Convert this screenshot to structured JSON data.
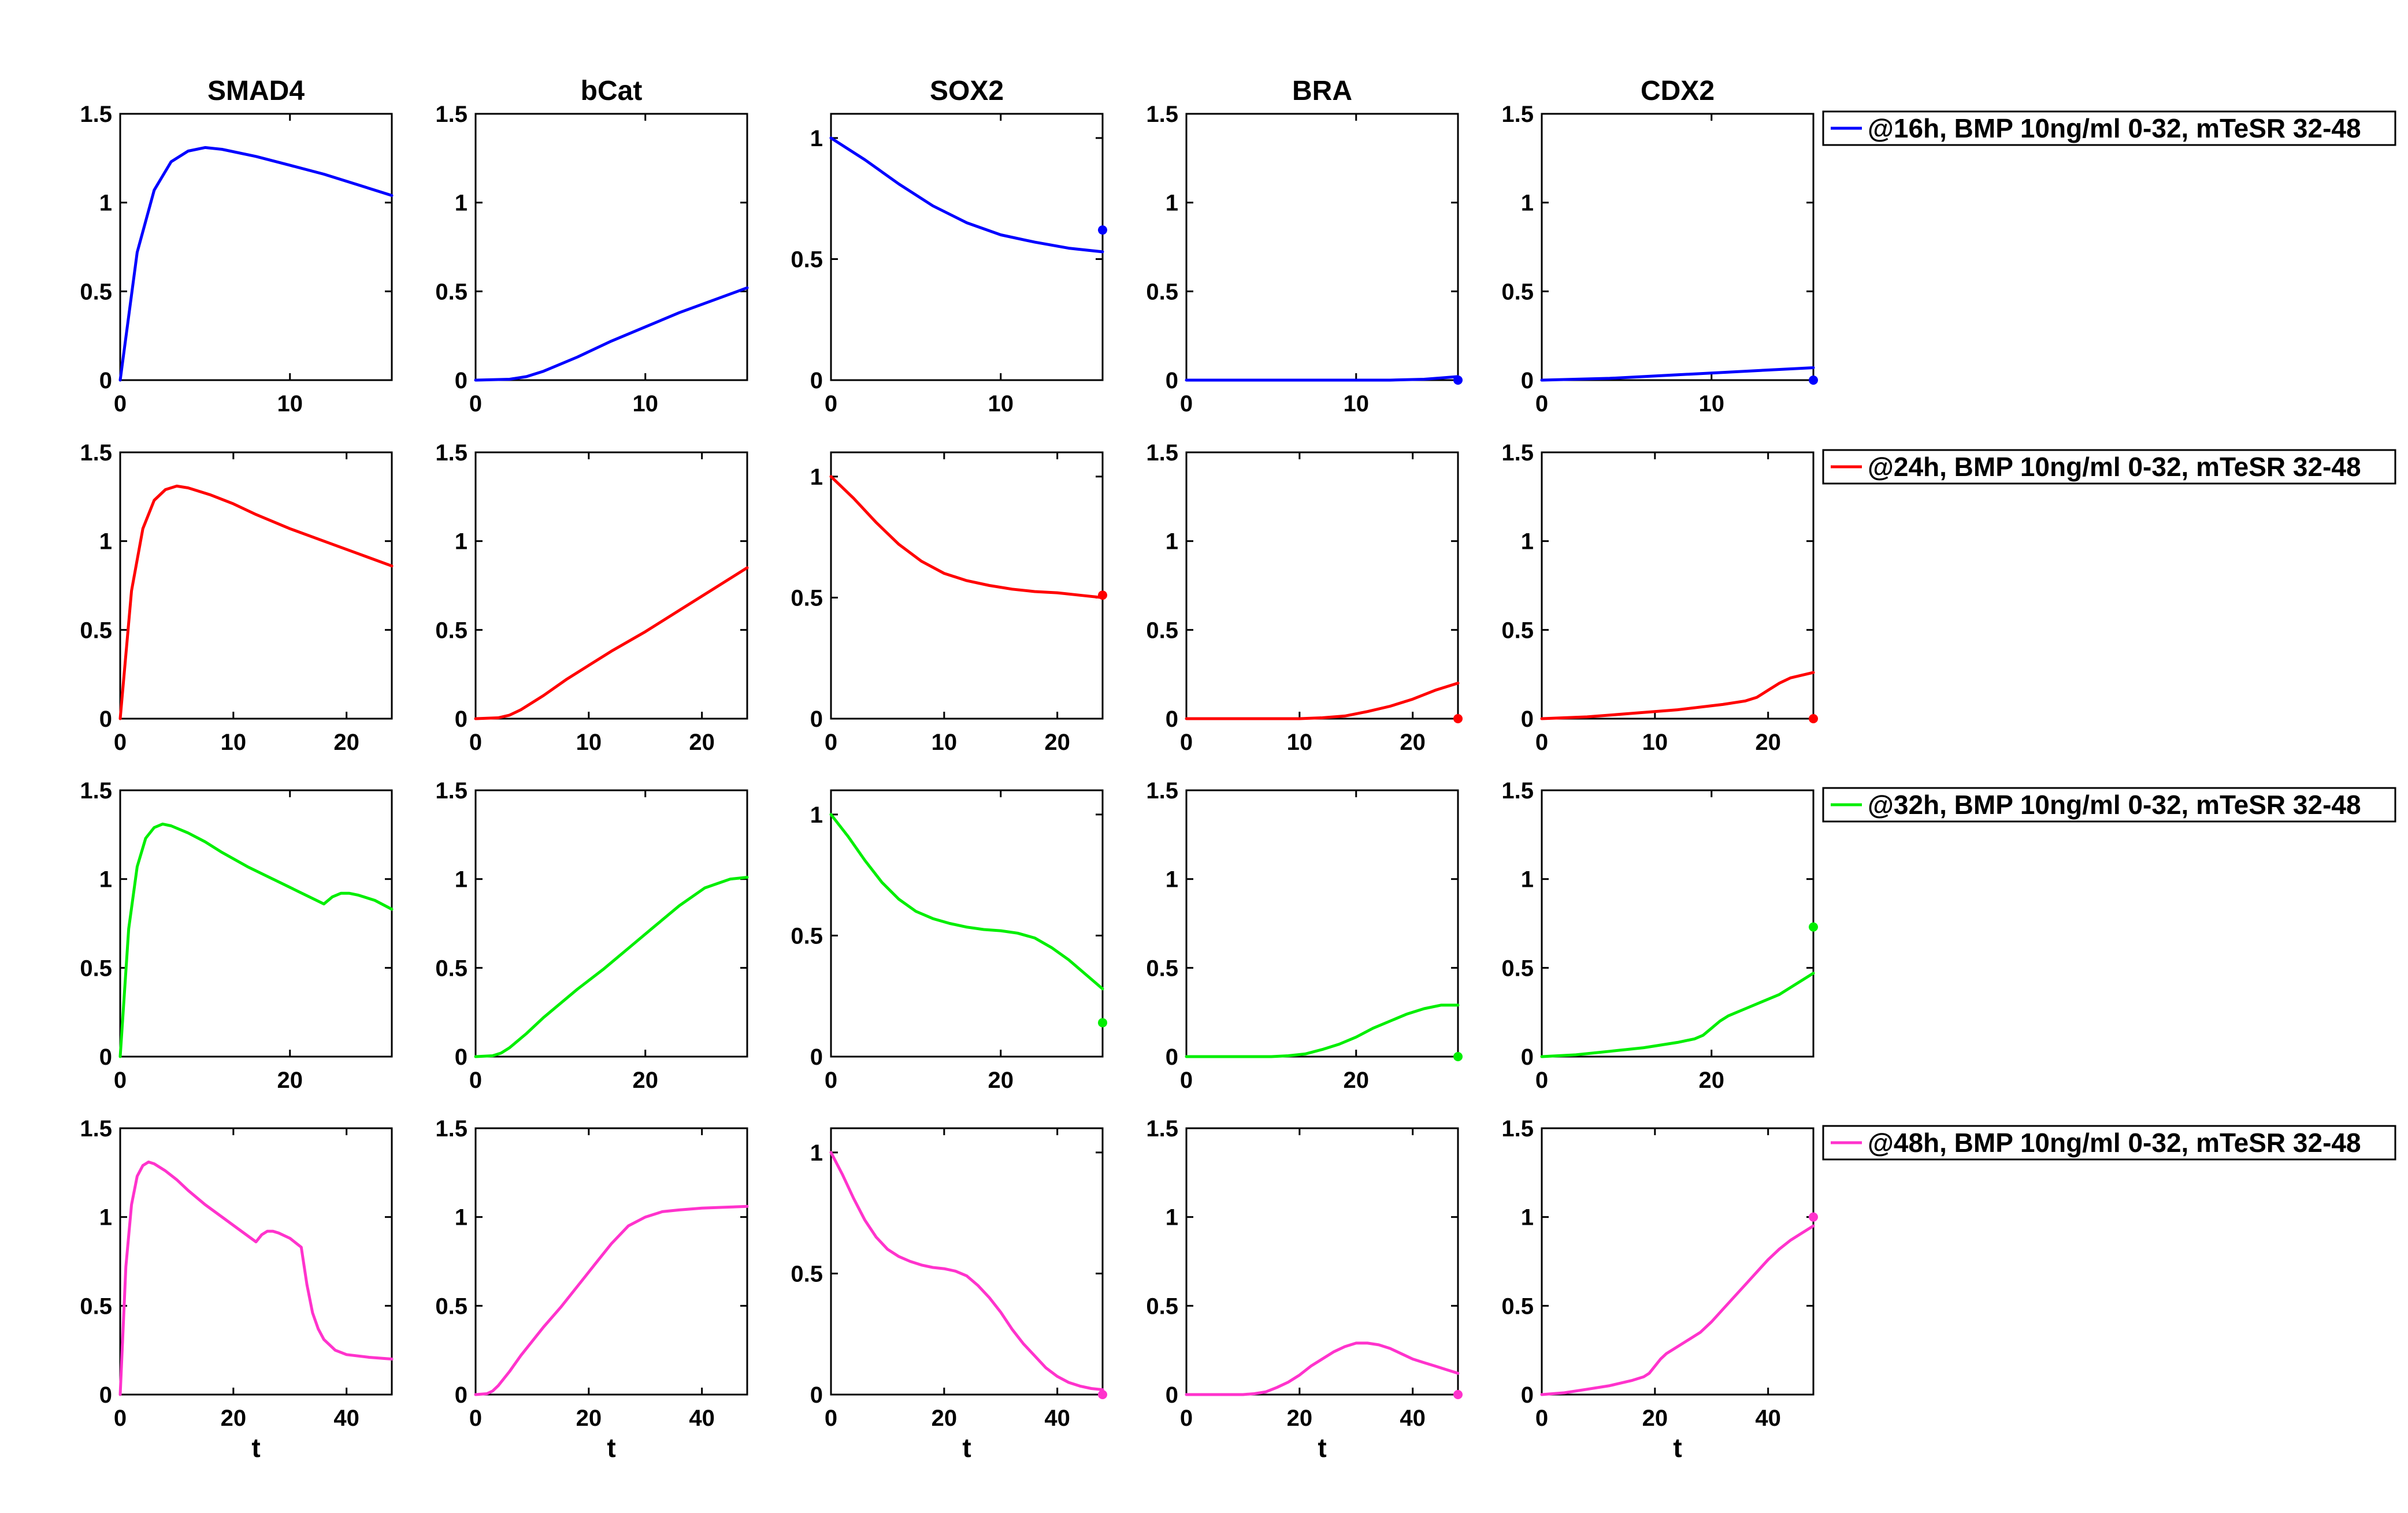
{
  "chart_data": {
    "type": "line",
    "layout": "4x5 small multiples",
    "columns": [
      "SMAD4",
      "bCat",
      "SOX2",
      "BRA",
      "CDX2"
    ],
    "xlabel": "t",
    "rows": [
      {
        "legend": "@16h, BMP 10ng/ml 0-32, mTeSR 32-48",
        "color": "#0000ff",
        "xlim": [
          0,
          16
        ],
        "xticks": [
          0,
          10
        ],
        "panels": [
          {
            "ylim": [
              0,
              1.5
            ],
            "yticks": [
              0,
              0.5,
              1,
              1.5
            ],
            "x": [
              0,
              1,
              2,
              3,
              4,
              5,
              6,
              8,
              10,
              12,
              14,
              16
            ],
            "y": [
              0,
              0.72,
              1.07,
              1.23,
              1.29,
              1.31,
              1.3,
              1.26,
              1.21,
              1.16,
              1.1,
              1.04
            ],
            "marker": null
          },
          {
            "ylim": [
              0,
              1.5
            ],
            "yticks": [
              0,
              0.5,
              1,
              1.5
            ],
            "x": [
              0,
              2,
              3,
              4,
              6,
              8,
              10,
              12,
              14,
              16
            ],
            "y": [
              0,
              0.005,
              0.02,
              0.05,
              0.13,
              0.22,
              0.3,
              0.38,
              0.45,
              0.52
            ],
            "marker": null
          },
          {
            "ylim": [
              0,
              1.1
            ],
            "yticks": [
              0,
              0.5,
              1
            ],
            "x": [
              0,
              2,
              4,
              6,
              8,
              10,
              12,
              14,
              16
            ],
            "y": [
              1.0,
              0.91,
              0.81,
              0.72,
              0.65,
              0.6,
              0.57,
              0.545,
              0.53
            ],
            "marker": [
              16,
              0.62
            ]
          },
          {
            "ylim": [
              0,
              1.5
            ],
            "yticks": [
              0,
              0.5,
              1,
              1.5
            ],
            "x": [
              0,
              4,
              8,
              12,
              14,
              15,
              16
            ],
            "y": [
              0,
              0,
              0,
              0,
              0.005,
              0.012,
              0.02
            ],
            "marker": [
              16,
              0.0
            ]
          },
          {
            "ylim": [
              0,
              1.5
            ],
            "yticks": [
              0,
              0.5,
              1,
              1.5
            ],
            "x": [
              0,
              4,
              8,
              12,
              16
            ],
            "y": [
              0,
              0.01,
              0.03,
              0.05,
              0.07
            ],
            "marker": [
              16,
              0.0
            ]
          }
        ]
      },
      {
        "legend": "@24h, BMP 10ng/ml 0-32, mTeSR 32-48",
        "color": "#ff0000",
        "xlim": [
          0,
          24
        ],
        "xticks": [
          0,
          10,
          20
        ],
        "panels": [
          {
            "ylim": [
              0,
              1.5
            ],
            "yticks": [
              0,
              0.5,
              1,
              1.5
            ],
            "x": [
              0,
              1,
              2,
              3,
              4,
              5,
              6,
              8,
              10,
              12,
              15,
              18,
              21,
              24
            ],
            "y": [
              0,
              0.72,
              1.07,
              1.23,
              1.29,
              1.31,
              1.3,
              1.26,
              1.21,
              1.15,
              1.07,
              1.0,
              0.93,
              0.86
            ],
            "marker": null
          },
          {
            "ylim": [
              0,
              1.5
            ],
            "yticks": [
              0,
              0.5,
              1,
              1.5
            ],
            "x": [
              0,
              2,
              3,
              4,
              6,
              8,
              10,
              12,
              15,
              18,
              21,
              24
            ],
            "y": [
              0,
              0.005,
              0.02,
              0.05,
              0.13,
              0.22,
              0.3,
              0.38,
              0.49,
              0.61,
              0.73,
              0.85
            ],
            "marker": null
          },
          {
            "ylim": [
              0,
              1.1
            ],
            "yticks": [
              0,
              0.5,
              1
            ],
            "x": [
              0,
              2,
              4,
              6,
              8,
              10,
              12,
              14,
              16,
              18,
              20,
              22,
              24
            ],
            "y": [
              1.0,
              0.91,
              0.81,
              0.72,
              0.65,
              0.6,
              0.57,
              0.55,
              0.535,
              0.525,
              0.52,
              0.51,
              0.5
            ],
            "marker": [
              24,
              0.51
            ]
          },
          {
            "ylim": [
              0,
              1.5
            ],
            "yticks": [
              0,
              0.5,
              1,
              1.5
            ],
            "x": [
              0,
              6,
              10,
              12,
              14,
              16,
              18,
              20,
              22,
              24
            ],
            "y": [
              0,
              0,
              0,
              0.005,
              0.015,
              0.04,
              0.07,
              0.11,
              0.16,
              0.2
            ],
            "marker": [
              24,
              0.0
            ]
          },
          {
            "ylim": [
              0,
              1.5
            ],
            "yticks": [
              0,
              0.5,
              1,
              1.5
            ],
            "x": [
              0,
              4,
              8,
              12,
              16,
              18,
              19,
              20,
              21,
              22,
              24
            ],
            "y": [
              0,
              0.01,
              0.03,
              0.05,
              0.08,
              0.1,
              0.12,
              0.16,
              0.2,
              0.23,
              0.26
            ],
            "marker": [
              24,
              0.0
            ]
          }
        ]
      },
      {
        "legend": "@32h, BMP 10ng/ml 0-32, mTeSR 32-48",
        "color": "#00ee00",
        "xlim": [
          0,
          32
        ],
        "xticks": [
          0,
          20
        ],
        "panels": [
          {
            "ylim": [
              0,
              1.5
            ],
            "yticks": [
              0,
              0.5,
              1,
              1.5
            ],
            "x": [
              0,
              1,
              2,
              3,
              4,
              5,
              6,
              8,
              10,
              12,
              15,
              18,
              21,
              24,
              25,
              26,
              27,
              28,
              30,
              32
            ],
            "y": [
              0,
              0.72,
              1.07,
              1.23,
              1.29,
              1.31,
              1.3,
              1.26,
              1.21,
              1.15,
              1.07,
              1.0,
              0.93,
              0.86,
              0.9,
              0.92,
              0.92,
              0.91,
              0.88,
              0.83
            ],
            "marker": null
          },
          {
            "ylim": [
              0,
              1.5
            ],
            "yticks": [
              0,
              0.5,
              1,
              1.5
            ],
            "x": [
              0,
              2,
              3,
              4,
              6,
              8,
              10,
              12,
              15,
              18,
              21,
              24,
              27,
              30,
              32
            ],
            "y": [
              0,
              0.005,
              0.02,
              0.05,
              0.13,
              0.22,
              0.3,
              0.38,
              0.49,
              0.61,
              0.73,
              0.85,
              0.95,
              1.0,
              1.01
            ],
            "marker": null
          },
          {
            "ylim": [
              0,
              1.1
            ],
            "yticks": [
              0,
              0.5,
              1
            ],
            "x": [
              0,
              2,
              4,
              6,
              8,
              10,
              12,
              14,
              16,
              18,
              20,
              22,
              24,
              26,
              28,
              30,
              32
            ],
            "y": [
              1.0,
              0.91,
              0.81,
              0.72,
              0.65,
              0.6,
              0.57,
              0.55,
              0.535,
              0.525,
              0.52,
              0.51,
              0.49,
              0.45,
              0.4,
              0.34,
              0.28
            ],
            "marker": [
              32,
              0.14
            ]
          },
          {
            "ylim": [
              0,
              1.5
            ],
            "yticks": [
              0,
              0.5,
              1,
              1.5
            ],
            "x": [
              0,
              10,
              12,
              14,
              16,
              18,
              20,
              22,
              24,
              26,
              28,
              30,
              32
            ],
            "y": [
              0,
              0,
              0.005,
              0.015,
              0.04,
              0.07,
              0.11,
              0.16,
              0.2,
              0.24,
              0.27,
              0.29,
              0.29
            ],
            "marker": [
              32,
              0.0
            ]
          },
          {
            "ylim": [
              0,
              1.5
            ],
            "yticks": [
              0,
              0.5,
              1,
              1.5
            ],
            "x": [
              0,
              4,
              8,
              12,
              16,
              18,
              19,
              20,
              21,
              22,
              24,
              26,
              28,
              30,
              32
            ],
            "y": [
              0,
              0.01,
              0.03,
              0.05,
              0.08,
              0.1,
              0.12,
              0.16,
              0.2,
              0.23,
              0.27,
              0.31,
              0.35,
              0.41,
              0.47
            ],
            "marker": [
              32,
              0.73
            ]
          }
        ]
      },
      {
        "legend": "@48h, BMP 10ng/ml 0-32, mTeSR 32-48",
        "color": "#ff33cc",
        "xlim": [
          0,
          48
        ],
        "xticks": [
          0,
          20,
          40
        ],
        "panels": [
          {
            "ylim": [
              0,
              1.5
            ],
            "yticks": [
              0,
              0.5,
              1,
              1.5
            ],
            "x": [
              0,
              1,
              2,
              3,
              4,
              5,
              6,
              8,
              10,
              12,
              15,
              18,
              21,
              24,
              25,
              26,
              27,
              28,
              30,
              32,
              33,
              34,
              35,
              36,
              38,
              40,
              44,
              48
            ],
            "y": [
              0,
              0.72,
              1.07,
              1.23,
              1.29,
              1.31,
              1.3,
              1.26,
              1.21,
              1.15,
              1.07,
              1.0,
              0.93,
              0.86,
              0.9,
              0.92,
              0.92,
              0.91,
              0.88,
              0.83,
              0.62,
              0.46,
              0.37,
              0.31,
              0.25,
              0.225,
              0.21,
              0.2
            ],
            "marker": null
          },
          {
            "ylim": [
              0,
              1.5
            ],
            "yticks": [
              0,
              0.5,
              1,
              1.5
            ],
            "x": [
              0,
              2,
              3,
              4,
              6,
              8,
              10,
              12,
              15,
              18,
              21,
              24,
              27,
              30,
              33,
              36,
              40,
              44,
              48
            ],
            "y": [
              0,
              0.005,
              0.02,
              0.05,
              0.13,
              0.22,
              0.3,
              0.38,
              0.49,
              0.61,
              0.73,
              0.85,
              0.95,
              1.0,
              1.03,
              1.04,
              1.05,
              1.055,
              1.06
            ],
            "marker": null
          },
          {
            "ylim": [
              0,
              1.1
            ],
            "yticks": [
              0,
              0.5,
              1
            ],
            "x": [
              0,
              2,
              4,
              6,
              8,
              10,
              12,
              14,
              16,
              18,
              20,
              22,
              24,
              26,
              28,
              30,
              32,
              34,
              36,
              38,
              40,
              42,
              44,
              46,
              48
            ],
            "y": [
              1.0,
              0.91,
              0.81,
              0.72,
              0.65,
              0.6,
              0.57,
              0.55,
              0.535,
              0.525,
              0.52,
              0.51,
              0.49,
              0.45,
              0.4,
              0.34,
              0.27,
              0.21,
              0.16,
              0.11,
              0.075,
              0.05,
              0.035,
              0.025,
              0.02
            ],
            "marker": [
              48,
              0.0
            ]
          },
          {
            "ylim": [
              0,
              1.5
            ],
            "yticks": [
              0,
              0.5,
              1,
              1.5
            ],
            "x": [
              0,
              10,
              12,
              14,
              16,
              18,
              20,
              22,
              24,
              26,
              28,
              30,
              32,
              34,
              36,
              38,
              40,
              42,
              44,
              46,
              48
            ],
            "y": [
              0,
              0,
              0.005,
              0.015,
              0.04,
              0.07,
              0.11,
              0.16,
              0.2,
              0.24,
              0.27,
              0.29,
              0.29,
              0.28,
              0.26,
              0.23,
              0.2,
              0.18,
              0.16,
              0.14,
              0.12
            ],
            "marker": [
              48,
              0.0
            ]
          },
          {
            "ylim": [
              0,
              1.5
            ],
            "yticks": [
              0,
              0.5,
              1,
              1.5
            ],
            "x": [
              0,
              4,
              8,
              12,
              16,
              18,
              19,
              20,
              21,
              22,
              24,
              26,
              28,
              30,
              32,
              34,
              36,
              38,
              40,
              42,
              44,
              46,
              48
            ],
            "y": [
              0,
              0.01,
              0.03,
              0.05,
              0.08,
              0.1,
              0.12,
              0.16,
              0.2,
              0.23,
              0.27,
              0.31,
              0.35,
              0.41,
              0.48,
              0.55,
              0.62,
              0.69,
              0.76,
              0.82,
              0.87,
              0.91,
              0.95
            ],
            "marker": [
              48,
              1.0
            ]
          }
        ]
      }
    ]
  }
}
